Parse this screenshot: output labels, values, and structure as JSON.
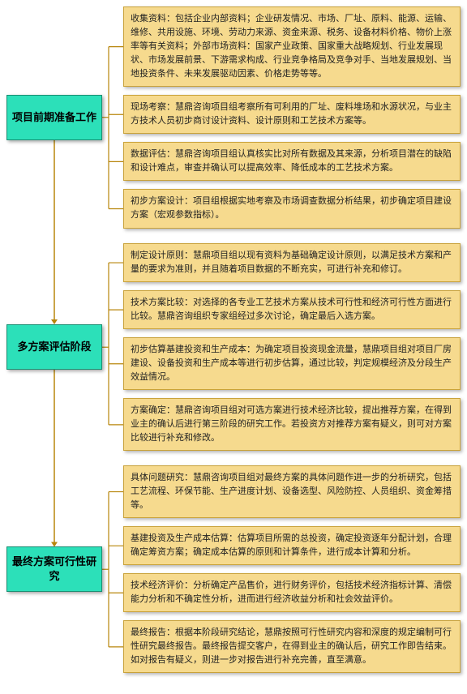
{
  "diagram": {
    "type": "flowchart",
    "background": "#ffffff",
    "stage_box": {
      "bg": "#2ce0b9",
      "border": "#1a8f73",
      "text_color": "#000000",
      "fontsize": 13,
      "shadow": "2px 2px 4px rgba(0,0,0,0.35)"
    },
    "detail_box": {
      "bg": "#f6da8e",
      "border": "#c9a23a",
      "text_color": "#222222",
      "fontsize": 11,
      "shadow": "2px 2px 4px rgba(0,0,0,0.3)"
    },
    "connector_color": "#b8860b",
    "arrow_color": "#b8860b",
    "stages": [
      {
        "title": "项目前期准备工作",
        "details": [
          "收集资料：包括企业内部资料；企业研发情况、市场、厂址、原料、能源、运输、维修、共用设施、环境、劳动力来源、资金来源、税务、设备材料价格、物价上涨率等有关资料；外部市场资料：国家产业政策、国家重大战略规划、行业发展现状、市场发展前景、下游需求构成、行业竞争格局及竞争对手、当地发展规划、当地投资条件、未来发展驱动因素、价格走势等等。",
          "现场考察：慧鼎咨询项目组考察所有可利用的厂址、废料堆场和水源状况，与业主方技术人员初步商讨设计资料、设计原则和工艺技术方案等。",
          "数据评估：慧鼎咨询项目组认真核实比对所有数据及其来源，分析项目潜在的缺陷和设计难点，审查并确认可以提高效率、降低成本的工艺技术方案。",
          "初步方案设计：项目组根据实地考察及市场调查数据分析结果，初步确定项目建设方案（宏观参数指标）。"
        ]
      },
      {
        "title": "多方案评估阶段",
        "details": [
          "制定设计原则：慧鼎项目组以现有资料为基础确定设计原则，以满足技术方案和产量的要求为准则，并且随着项目数据的不断充实，可进行补充和修订。",
          "技术方案比较：对选择的各专业工艺技术方案从技术可行性和经济可行性方面进行比较。慧鼎咨询组织专家组经过多次讨论，确定最后入选方案。",
          "初步估算基建投资和生产成本：为确定项目投资现金流量，慧鼎项目组对项目厂房建设、设备投资和生产成本等进行初步估算，通过比较，判定规模经济及分段生产效益情况。",
          "方案确定：慧鼎咨询项目组对可选方案进行技术经济比较，提出推荐方案，在得到业主的确认后进行第三阶段的研究工作。若投资方对推荐方案有疑义，则可对方案比较进行补充和修改。"
        ]
      },
      {
        "title": "最终方案可行性研究",
        "details": [
          "具体问题研究：慧鼎咨询项目组对最终方案的具体问题作进一步的分析研究，包括工艺流程、环保节能、生产进度计划、设备选型、风险防控、人员组织、资金筹措等。",
          "基建投资及生产成本估算：估算项目所需的总投资，确定投资逐年分配计划，合理确定筹资方案；确定成本估算的原则和计算条件，进行成本计算和分析。",
          "技术经济评价：分析确定产品售价，进行财务评价，包括技术经济指标计算、清偿能力分析和不确定性分析，进而进行经济收益分析和社会效益评价。",
          "最终报告：根据本阶段研究结论，慧鼎按照可行性研究内容和深度的规定编制可行性研究最终报告。最终报告提交客户，在得到业主的确认后，研究工作即告结束。如对报告有疑义，则进一步对报告进行补充完善，直至满意。"
        ]
      }
    ]
  }
}
